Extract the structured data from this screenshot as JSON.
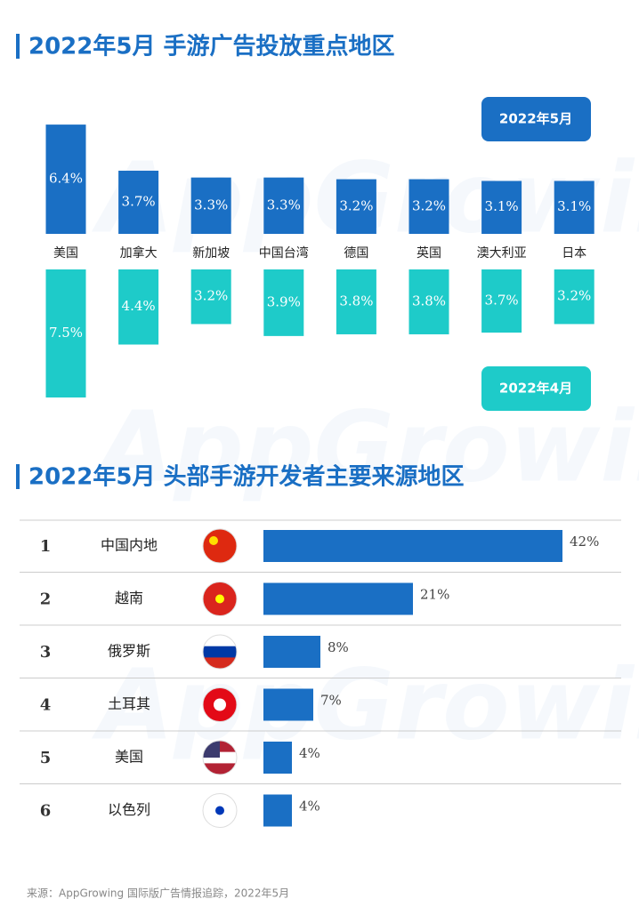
{
  "watermark": "AppGrowing",
  "chart_data": [
    {
      "type": "bar",
      "title": "2022年5月 手游广告投放重点地区",
      "categories": [
        "美国",
        "加拿大",
        "新加坡",
        "中国台湾",
        "德国",
        "英国",
        "澳大利亚",
        "日本"
      ],
      "series": [
        {
          "name": "2022年5月",
          "color": "#1a6fc4",
          "values": [
            6.4,
            3.7,
            3.3,
            3.3,
            3.2,
            3.2,
            3.1,
            3.1
          ],
          "value_labels": [
            "6.4%",
            "3.7%",
            "3.3%",
            "3.3%",
            "3.2%",
            "3.2%",
            "3.1%",
            "3.1%"
          ]
        },
        {
          "name": "2022年4月",
          "color": "#1ecbc9",
          "values": [
            7.5,
            4.4,
            3.2,
            3.9,
            3.8,
            3.8,
            3.7,
            3.2
          ],
          "value_labels": [
            "7.5%",
            "4.4%",
            "3.2%",
            "3.9%",
            "3.8%",
            "3.8%",
            "3.7%",
            "3.2%"
          ]
        }
      ]
    },
    {
      "type": "hbar",
      "title": "2022年5月 头部手游开发者主要来源地区",
      "ranks": [
        1,
        2,
        3,
        4,
        5,
        6
      ],
      "categories": [
        "中国内地",
        "越南",
        "俄罗斯",
        "土耳其",
        "美国",
        "以色列"
      ],
      "color": "#1a6fc4",
      "values": [
        42,
        21,
        8,
        7,
        4,
        4
      ],
      "value_labels": [
        "42%",
        "21%",
        "8%",
        "7%",
        "4%",
        "4%"
      ]
    }
  ],
  "source": "来源：AppGrowing 国际版广告情报追踪，2022年5月"
}
